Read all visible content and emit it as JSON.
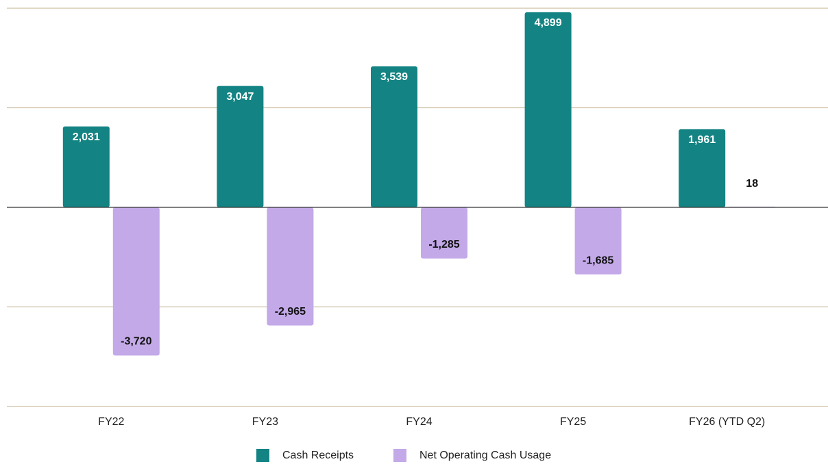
{
  "chart_data": {
    "type": "bar",
    "categories": [
      "FY22",
      "FY23",
      "FY24",
      "FY25",
      "FY26 (YTD Q2)"
    ],
    "series": [
      {
        "name": "Cash Receipts",
        "color": "#138383",
        "values": [
          2031,
          3047,
          3539,
          4899,
          1961
        ],
        "value_labels": [
          "2,031",
          "3,047",
          "3,539",
          "4,899",
          "1,961"
        ]
      },
      {
        "name": "Net Operating Cash Usage",
        "color": "#c3a9e8",
        "values": [
          -3720,
          -2965,
          -1285,
          -1685,
          18
        ],
        "value_labels": [
          "-3,720",
          "-2,965",
          "-1,285",
          "-1,685",
          "18"
        ]
      }
    ],
    "ylim": [
      -5000,
      5000
    ],
    "yticks": [
      -5000,
      -2500,
      0,
      2500,
      5000
    ],
    "grid": true,
    "legend": "bottom"
  }
}
